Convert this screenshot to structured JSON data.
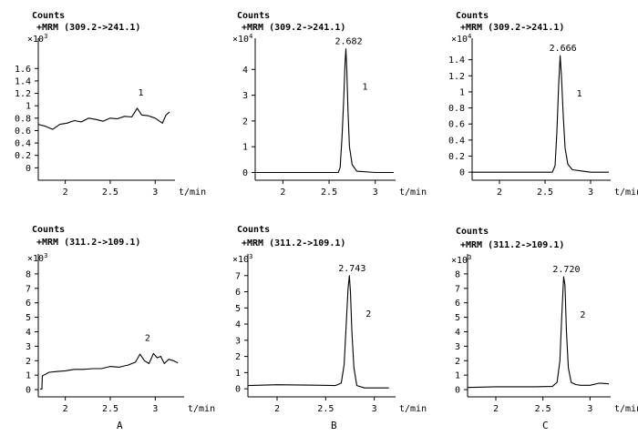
{
  "chart_data": [
    {
      "panel": "A1",
      "type": "line",
      "counts_label": "Counts",
      "mrm_label": "+MRM (309.2->241.1)",
      "exponent": "3",
      "xlabel": "t/min",
      "xlim": [
        1.7,
        3.2
      ],
      "ylim": [
        -0.2,
        2.0
      ],
      "xticks": [
        "2",
        "2.5",
        "3"
      ],
      "yticks": [
        "0",
        "0.2",
        "0.4",
        "0.6",
        "0.8",
        "1",
        "1.2",
        "1.4",
        "1.6"
      ],
      "peak_label": "",
      "series_label": "1",
      "series": [
        {
          "x": [
            1.7,
            1.78,
            1.86,
            1.94,
            2.02,
            2.1,
            2.18,
            2.26,
            2.34,
            2.42,
            2.5,
            2.58,
            2.66,
            2.74,
            2.8,
            2.85,
            2.92,
            3.0,
            3.08,
            3.12,
            3.16
          ],
          "y": [
            0.7,
            0.67,
            0.62,
            0.7,
            0.72,
            0.76,
            0.74,
            0.8,
            0.78,
            0.75,
            0.8,
            0.79,
            0.83,
            0.82,
            0.96,
            0.85,
            0.84,
            0.8,
            0.72,
            0.85,
            0.9
          ]
        }
      ]
    },
    {
      "panel": "B1",
      "type": "line",
      "counts_label": "Counts",
      "mrm_label": "+MRM (309.2->241.1)",
      "exponent": "4",
      "xlabel": "t/min",
      "xlim": [
        1.7,
        3.2
      ],
      "ylim": [
        -0.3,
        5.0
      ],
      "xticks": [
        "2",
        "2.5",
        "3"
      ],
      "yticks": [
        "0",
        "1",
        "2",
        "3",
        "4"
      ],
      "peak_label": "2.682",
      "series_label": "1",
      "series": [
        {
          "x": [
            1.7,
            2.0,
            2.5,
            2.6,
            2.62,
            2.64,
            2.66,
            2.672,
            2.682,
            2.692,
            2.705,
            2.72,
            2.75,
            2.8,
            3.0,
            3.2
          ],
          "y": [
            0,
            0,
            0,
            0,
            0.2,
            1.4,
            3.0,
            4.2,
            4.8,
            4.0,
            2.4,
            1.0,
            0.3,
            0.05,
            0,
            0
          ]
        }
      ]
    },
    {
      "panel": "C1",
      "type": "line",
      "counts_label": "Counts",
      "mrm_label": "+MRM (309.2->241.1)",
      "exponent": "4",
      "xlabel": "t/min",
      "xlim": [
        1.7,
        3.2
      ],
      "ylim": [
        -0.1,
        1.6
      ],
      "xticks": [
        "2",
        "2.5",
        "3"
      ],
      "yticks": [
        "0",
        "0.2",
        "0.4",
        "0.6",
        "0.8",
        "1",
        "1.2",
        "1.4"
      ],
      "peak_label": "2.666",
      "series_label": "1",
      "series": [
        {
          "x": [
            1.7,
            2.0,
            2.5,
            2.58,
            2.61,
            2.63,
            2.65,
            2.666,
            2.68,
            2.7,
            2.72,
            2.75,
            2.8,
            3.0,
            3.2
          ],
          "y": [
            0,
            0,
            0,
            0,
            0.08,
            0.5,
            1.1,
            1.45,
            1.2,
            0.7,
            0.3,
            0.1,
            0.03,
            0,
            0
          ]
        }
      ]
    },
    {
      "panel": "A2",
      "type": "line",
      "counts_label": "Counts",
      "mrm_label": "+MRM (311.2->109.1)",
      "exponent": "3",
      "xlabel": "t/min",
      "xlim": [
        1.7,
        3.3
      ],
      "ylim": [
        -0.5,
        9.0
      ],
      "xticks": [
        "2",
        "2.5",
        "3"
      ],
      "yticks": [
        "0",
        "1",
        "2",
        "3",
        "4",
        "5",
        "6",
        "7",
        "8"
      ],
      "peak_label": "",
      "series_label": "2",
      "series": [
        {
          "x": [
            1.72,
            1.74,
            1.745,
            1.76,
            1.82,
            1.9,
            2.0,
            2.1,
            2.2,
            2.3,
            2.4,
            2.5,
            2.6,
            2.7,
            2.78,
            2.83,
            2.88,
            2.93,
            2.98,
            3.02,
            3.06,
            3.1,
            3.15,
            3.2,
            3.25
          ],
          "y": [
            0.05,
            0.05,
            0.95,
            1.0,
            1.2,
            1.25,
            1.3,
            1.4,
            1.4,
            1.45,
            1.45,
            1.6,
            1.55,
            1.7,
            1.9,
            2.45,
            2.0,
            1.8,
            2.5,
            2.2,
            2.3,
            1.8,
            2.1,
            2.0,
            1.85
          ]
        }
      ]
    },
    {
      "panel": "B2",
      "type": "line",
      "counts_label": "Counts",
      "mrm_label": "+MRM (311.2->109.1)",
      "exponent": "3",
      "xlabel": "t/min",
      "xlim": [
        1.7,
        3.2
      ],
      "ylim": [
        -0.5,
        8.0
      ],
      "xticks": [
        "2",
        "2.5",
        "3"
      ],
      "yticks": [
        "0",
        "1",
        "2",
        "3",
        "4",
        "5",
        "6",
        "7"
      ],
      "peak_label": "2.743",
      "series_label": "2",
      "series": [
        {
          "x": [
            1.7,
            2.0,
            2.4,
            2.6,
            2.66,
            2.69,
            2.71,
            2.73,
            2.743,
            2.755,
            2.77,
            2.79,
            2.82,
            2.9,
            3.05,
            3.15
          ],
          "y": [
            0.2,
            0.25,
            0.22,
            0.2,
            0.35,
            1.5,
            3.8,
            6.2,
            7.0,
            6.0,
            3.5,
            1.3,
            0.2,
            0.05,
            0.05,
            0.05
          ]
        }
      ]
    },
    {
      "panel": "C2",
      "type": "line",
      "counts_label": "Counts",
      "mrm_label": "+MRM (311.2->109.1)",
      "exponent": "3",
      "xlabel": "t/min",
      "xlim": [
        1.7,
        3.2
      ],
      "ylim": [
        -0.5,
        9.0
      ],
      "xticks": [
        "2",
        "2.5",
        "3"
      ],
      "yticks": [
        "0",
        "1",
        "2",
        "3",
        "4",
        "5",
        "6",
        "7",
        "8"
      ],
      "peak_label": "2.720",
      "series_label": "2",
      "series": [
        {
          "x": [
            1.7,
            2.0,
            2.4,
            2.6,
            2.65,
            2.68,
            2.7,
            2.72,
            2.735,
            2.75,
            2.77,
            2.8,
            2.85,
            2.9,
            3.0,
            3.1,
            3.2
          ],
          "y": [
            0.15,
            0.2,
            0.2,
            0.22,
            0.5,
            2.0,
            5.0,
            7.8,
            7.2,
            4.0,
            1.5,
            0.5,
            0.35,
            0.3,
            0.3,
            0.45,
            0.4
          ]
        }
      ]
    }
  ],
  "subfigure_labels": [
    "A",
    "B",
    "C"
  ]
}
